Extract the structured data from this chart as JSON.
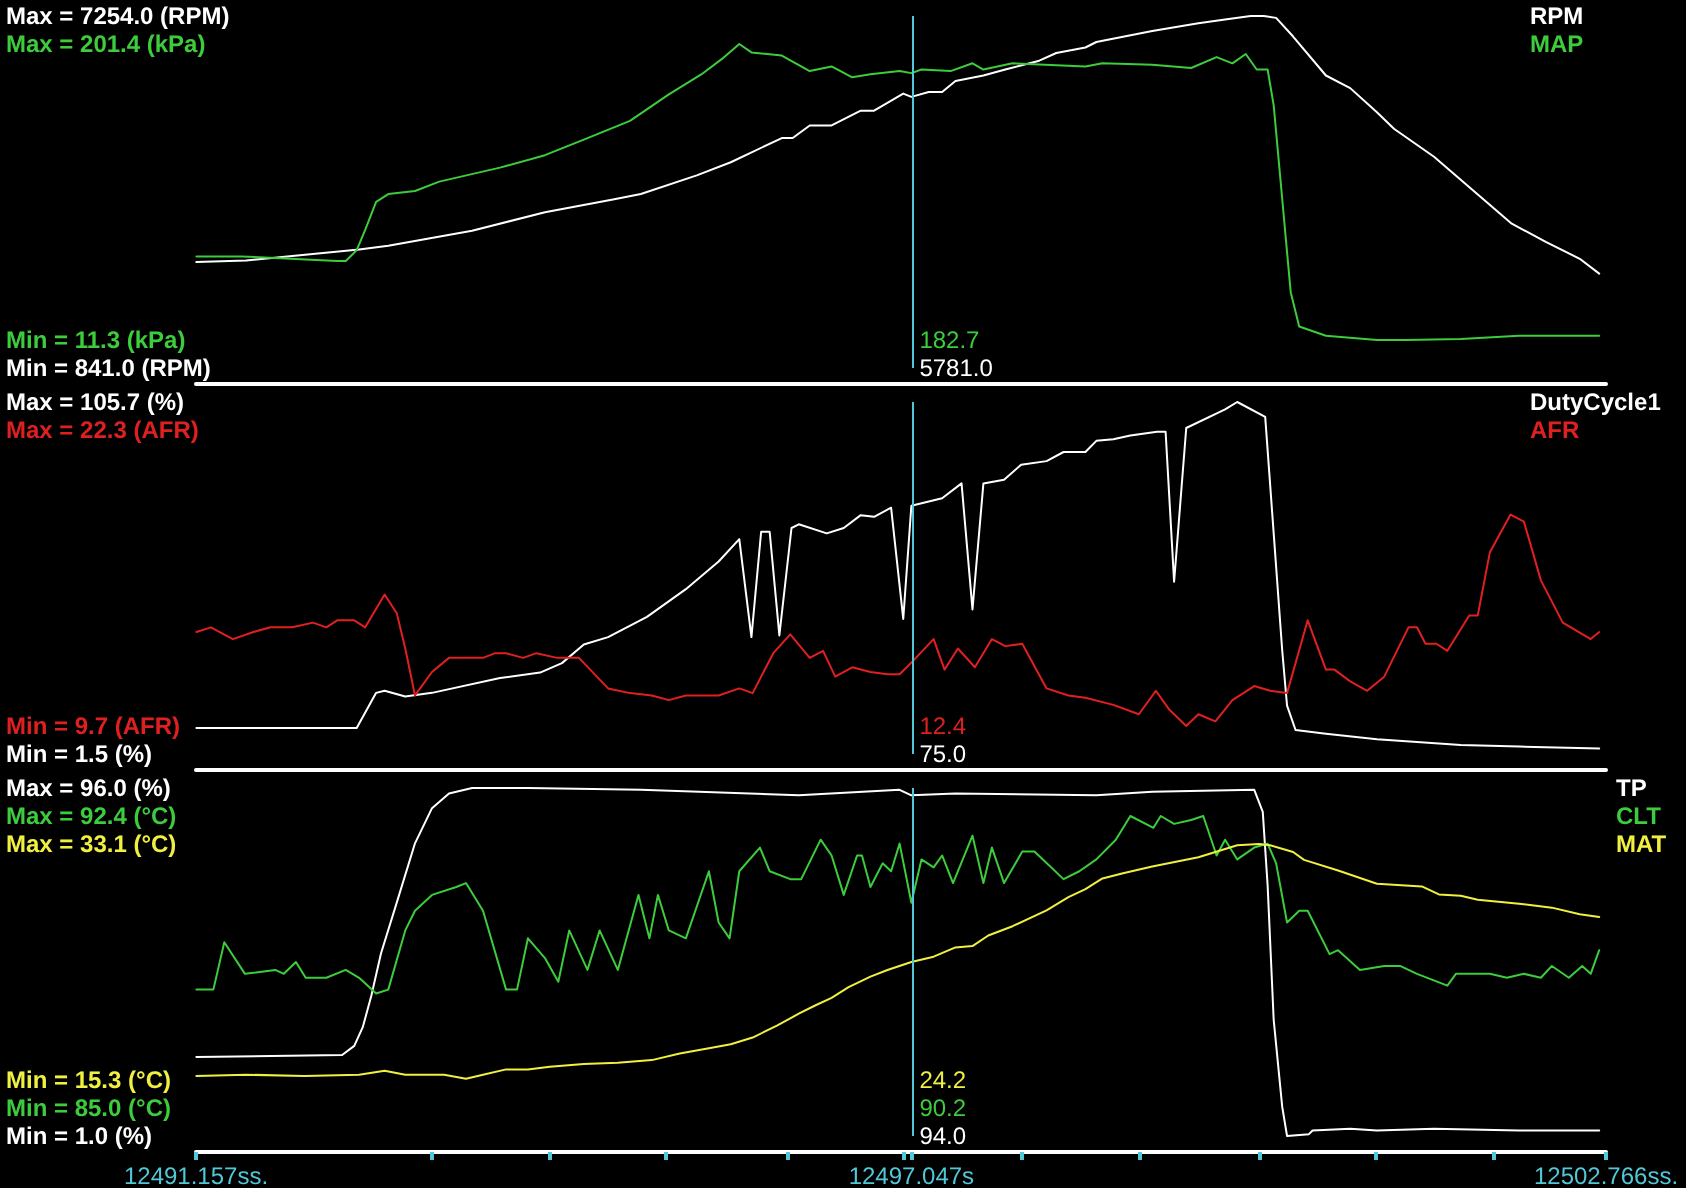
{
  "chart_data": [
    {
      "type": "line",
      "xlim": [
        12491.157,
        12502.766
      ],
      "tick_labels": "y",
      "marker": "none",
      "legend": "top right",
      "ylim": [
        841,
        7254
      ],
      "yticks": [
        {
          "value": 7254,
          "label": "Max = 7254.0 (RPM)"
        },
        {
          "value": 841,
          "label": "Min = 841.0 (RPM)"
        }
      ],
      "y2lim": [
        11.3,
        201.4
      ],
      "y2ticks": [
        {
          "value": 201.4,
          "label": "Max = 201.4 (kPa)"
        },
        {
          "value": 11.3,
          "label": "Min = 11.3 (kPa)"
        }
      ],
      "ref_lines": [
        {
          "axis": "x",
          "value": 12497.047,
          "color": "#50c8d8"
        }
      ],
      "annotations": [
        "5781.0",
        "182.7"
      ],
      "series": [
        {
          "name": "RPM",
          "color": "#ffffff",
          "x": [
            12491.16,
            12491.57,
            12492.5,
            12492.74,
            12493.43,
            12494.03,
            12494.59,
            12494.82,
            12495.28,
            12495.56,
            12495.98,
            12496.07,
            12496.21,
            12496.39,
            12496.63,
            12496.74,
            12496.98,
            12497.047,
            12497.19,
            12497.3,
            12497.41,
            12497.64,
            12497.82,
            12498.1,
            12498.24,
            12498.48,
            12498.57,
            12499.03,
            12499.41,
            12499.63,
            12499.84,
            12499.95,
            12500.05,
            12500.19,
            12500.46,
            12500.66,
            12500.88,
            12501.02,
            12501.35,
            12501.67,
            12501.99,
            12502.27,
            12502.55,
            12502.71
          ],
          "values": [
            2770,
            2800,
            3000,
            3070,
            3340,
            3680,
            3910,
            4010,
            4350,
            4590,
            5030,
            5030,
            5260,
            5260,
            5530,
            5530,
            5840,
            5781,
            5870,
            5870,
            6070,
            6170,
            6280,
            6440,
            6580,
            6680,
            6780,
            6980,
            7120,
            7190,
            7254,
            7254,
            7220,
            6880,
            6170,
            5940,
            5500,
            5200,
            4690,
            4080,
            3470,
            3140,
            2830,
            2560
          ]
        },
        {
          "name": "MAP",
          "color": "#3ccc3c",
          "axis": "y2",
          "x": [
            12491.16,
            12491.53,
            12492.32,
            12492.39,
            12492.48,
            12492.55,
            12492.64,
            12492.74,
            12492.96,
            12493.16,
            12493.66,
            12494.03,
            12494.35,
            12494.73,
            12495.05,
            12495.32,
            12495.49,
            12495.63,
            12495.73,
            12495.98,
            12496.21,
            12496.39,
            12496.56,
            12496.71,
            12496.95,
            12497.047,
            12497.13,
            12497.37,
            12497.55,
            12497.64,
            12497.88,
            12498.48,
            12498.62,
            12499.03,
            12499.35,
            12499.56,
            12499.69,
            12499.8,
            12499.89,
            12499.98,
            12500.03,
            12500.1,
            12500.17,
            12500.24,
            12500.46,
            12500.88,
            12501.12,
            12501.57,
            12502.05,
            12502.71
          ],
          "values": [
            65,
            65,
            62,
            62,
            69,
            82,
            100,
            105,
            107,
            113,
            122,
            130,
            140,
            152,
            169,
            182,
            192,
            201.4,
            196,
            194,
            184,
            187,
            180,
            182,
            184,
            182.7,
            185,
            184,
            189,
            185,
            189,
            187,
            189,
            188,
            186,
            193,
            189,
            195,
            185,
            185,
            162,
            102,
            42,
            20,
            14,
            11.3,
            11.3,
            12,
            14,
            14
          ]
        }
      ]
    },
    {
      "type": "line",
      "xlim": [
        12491.157,
        12502.766
      ],
      "tick_labels": "y",
      "marker": "none",
      "legend": "top right",
      "ylim": [
        1.5,
        105.7
      ],
      "yticks": [
        {
          "value": 105.7,
          "label": "Max = 105.7 (%)"
        },
        {
          "value": 1.5,
          "label": "Min = 1.5 (%)"
        }
      ],
      "y2lim": [
        9.7,
        22.3
      ],
      "y2ticks": [
        {
          "value": 22.3,
          "label": "Max = 22.3 (AFR)"
        },
        {
          "value": 9.7,
          "label": "Min = 9.7 (AFR)"
        }
      ],
      "ref_lines": [
        {
          "axis": "x",
          "value": 12497.047,
          "color": "#50c8d8"
        }
      ],
      "annotations": [
        "75.0",
        "12.4"
      ],
      "series": [
        {
          "name": "DutyCycle1",
          "color": "#ffffff",
          "x": [
            12491.16,
            12492.48,
            12492.64,
            12492.71,
            12492.88,
            12493.1,
            12493.66,
            12493.99,
            12494.17,
            12494.35,
            12494.55,
            12494.87,
            12495.19,
            12495.46,
            12495.63,
            12495.73,
            12495.81,
            12495.88,
            12495.96,
            12496.06,
            12496.12,
            12496.35,
            12496.49,
            12496.63,
            12496.74,
            12496.88,
            12496.98,
            12497.047,
            12497.3,
            12497.46,
            12497.55,
            12497.64,
            12497.81,
            12497.95,
            12498.16,
            12498.3,
            12498.48,
            12498.57,
            12498.71,
            12498.85,
            12499.07,
            12499.14,
            12499.21,
            12499.31,
            12499.63,
            12499.73,
            12499.96,
            12500.03,
            12500.1,
            12500.14,
            12500.21,
            12500.46,
            12500.88,
            12501.57,
            12502.05,
            12502.71
          ],
          "values": [
            9.2,
            9.2,
            19.6,
            20.2,
            18.5,
            19.6,
            24.0,
            25.6,
            28.4,
            33.9,
            36.1,
            42.1,
            50.3,
            58.5,
            65.1,
            36.1,
            67.3,
            67.3,
            36.6,
            68.4,
            69.5,
            66.8,
            68.4,
            72.2,
            71.7,
            74.4,
            41.5,
            75.0,
            77.2,
            81.6,
            44.3,
            81.6,
            82.7,
            87.1,
            88.2,
            90.9,
            90.9,
            94.2,
            94.7,
            95.8,
            96.9,
            96.9,
            52.5,
            98.0,
            103.5,
            105.7,
            101.3,
            66.8,
            32.2,
            15.8,
            8.6,
            7.5,
            5.9,
            4.2,
            3.7,
            3.1
          ]
        },
        {
          "name": "AFR",
          "color": "#e02020",
          "axis": "y2",
          "x": [
            12491.16,
            12491.28,
            12491.46,
            12491.63,
            12491.77,
            12491.95,
            12492.12,
            12492.23,
            12492.32,
            12492.46,
            12492.55,
            12492.71,
            12492.81,
            12492.88,
            12492.96,
            12493.1,
            12493.24,
            12493.52,
            12493.62,
            12493.71,
            12493.85,
            12493.96,
            12494.13,
            12494.31,
            12494.55,
            12494.73,
            12494.91,
            12495.05,
            12495.19,
            12495.46,
            12495.63,
            12495.74,
            12495.91,
            12496.05,
            12496.21,
            12496.32,
            12496.42,
            12496.56,
            12496.71,
            12496.85,
            12496.95,
            12497.047,
            12497.23,
            12497.32,
            12497.43,
            12497.57,
            12497.71,
            12497.82,
            12497.96,
            12498.16,
            12498.34,
            12498.48,
            12498.71,
            12498.92,
            12499.06,
            12499.17,
            12499.31,
            12499.41,
            12499.55,
            12499.69,
            12499.87,
            12500.0,
            12500.14,
            12500.31,
            12500.46,
            12500.53,
            12500.66,
            12500.8,
            12500.94,
            12501.14,
            12501.21,
            12501.28,
            12501.37,
            12501.46,
            12501.64,
            12501.71,
            12501.81,
            12501.98,
            12502.09,
            12502.23,
            12502.41,
            12502.64,
            12502.71
          ],
          "values": [
            13.7,
            13.9,
            13.4,
            13.7,
            13.9,
            13.9,
            14.1,
            13.9,
            14.2,
            14.2,
            13.9,
            15.3,
            14.5,
            13.0,
            11.0,
            12.0,
            12.6,
            12.6,
            12.8,
            12.8,
            12.6,
            12.8,
            12.6,
            12.6,
            11.3,
            11.1,
            11.0,
            10.8,
            11.0,
            11.0,
            11.3,
            11.1,
            12.8,
            13.6,
            12.6,
            12.9,
            11.8,
            12.2,
            12.0,
            11.9,
            11.9,
            12.4,
            13.4,
            12.1,
            13.0,
            12.2,
            13.4,
            13.1,
            13.2,
            11.3,
            11.0,
            10.9,
            10.6,
            10.2,
            11.2,
            10.4,
            9.7,
            10.2,
            9.9,
            10.8,
            11.4,
            11.2,
            11.1,
            14.2,
            12.1,
            12.1,
            11.6,
            11.2,
            11.8,
            13.9,
            13.9,
            13.2,
            13.2,
            12.9,
            14.4,
            14.4,
            17.1,
            18.7,
            18.4,
            15.9,
            14.1,
            13.4,
            13.7
          ]
        }
      ]
    },
    {
      "type": "line",
      "xlim": [
        12491.157,
        12502.766
      ],
      "marker": "none",
      "legend": "top right",
      "xticks": [
        {
          "value": 12491.157,
          "label": "12491.157ss."
        },
        {
          "value": 12493.1,
          "label": null
        },
        {
          "value": 12494.06,
          "label": null
        },
        {
          "value": 12495.03,
          "label": null
        },
        {
          "value": 12496.02,
          "label": null
        },
        {
          "value": 12496.99,
          "label": null
        },
        {
          "value": 12497.047,
          "label": "12497.047s"
        },
        {
          "value": 12497.96,
          "label": null
        },
        {
          "value": 12498.93,
          "label": null
        },
        {
          "value": 12499.91,
          "label": null
        },
        {
          "value": 12500.87,
          "label": null
        },
        {
          "value": 12501.84,
          "label": null
        },
        {
          "value": 12502.766,
          "label": "12502.766ss."
        }
      ],
      "ylim": [
        1.0,
        96.0
      ],
      "yticks": [
        {
          "value": 96.0,
          "label": "Max = 96.0 (%)"
        },
        {
          "value": 1.0,
          "label": "Min = 1.0 (%)"
        }
      ],
      "y2lim": [
        85.0,
        92.4
      ],
      "y2ticks": [
        {
          "value": 92.4,
          "label": "Max = 92.4 (°C)"
        },
        {
          "value": 85.0,
          "label": "Min = 85.0 (°C)"
        }
      ],
      "y3lim": [
        15.3,
        33.1
      ],
      "y3ticks": [
        {
          "value": 33.1,
          "label": "Max = 33.1 (°C)"
        },
        {
          "value": 15.3,
          "label": "Min = 15.3 (°C)"
        }
      ],
      "ref_lines": [
        {
          "axis": "x",
          "value": 12497.047,
          "color": "#50c8d8"
        }
      ],
      "annotations": [
        "94.0",
        "90.2",
        "24.2"
      ],
      "series": [
        {
          "name": "TP",
          "color": "#ffffff",
          "x": [
            12491.16,
            12492.36,
            12492.46,
            12492.53,
            12492.6,
            12492.68,
            12492.82,
            12492.96,
            12493.1,
            12493.24,
            12493.43,
            12493.89,
            12494.82,
            12496.12,
            12496.95,
            12497.047,
            12497.41,
            12498.57,
            12499.03,
            12499.87,
            12499.94,
            12499.98,
            12500.03,
            12500.1,
            12500.14,
            12500.32,
            12500.35,
            12500.66,
            12500.88,
            12501.35,
            12502.05,
            12502.71
          ],
          "values": [
            22.6,
            23.1,
            25.6,
            30.7,
            39.2,
            50.8,
            65.8,
            80.9,
            90.5,
            94.5,
            96.0,
            96.0,
            95.5,
            94.0,
            95.5,
            94.0,
            94.5,
            94.0,
            95.0,
            95.5,
            89.5,
            69.4,
            32.7,
            9.0,
            1.0,
            1.5,
            2.5,
            3.0,
            2.5,
            3.0,
            2.5,
            2.5
          ]
        },
        {
          "name": "CLT",
          "color": "#3ccc3c",
          "axis": "y2",
          "x": [
            12491.16,
            12491.3,
            12491.39,
            12491.56,
            12491.81,
            12491.88,
            12491.98,
            12492.06,
            12492.23,
            12492.39,
            12492.5,
            12492.64,
            12492.74,
            12492.88,
            12492.96,
            12493.1,
            12493.3,
            12493.38,
            12493.52,
            12493.71,
            12493.8,
            12493.89,
            12494.03,
            12494.14,
            12494.23,
            12494.38,
            12494.48,
            12494.63,
            12494.8,
            12494.89,
            12494.96,
            12495.05,
            12495.19,
            12495.38,
            12495.46,
            12495.55,
            12495.63,
            12495.8,
            12495.88,
            12496.05,
            12496.14,
            12496.3,
            12496.39,
            12496.49,
            12496.6,
            12496.64,
            12496.71,
            12496.81,
            12496.88,
            12496.95,
            12497.047,
            12497.13,
            12497.23,
            12497.3,
            12497.39,
            12497.55,
            12497.64,
            12497.71,
            12497.81,
            12497.96,
            12498.06,
            12498.3,
            12498.43,
            12498.57,
            12498.73,
            12498.85,
            12499.04,
            12499.1,
            12499.21,
            12499.35,
            12499.45,
            12499.56,
            12499.63,
            12499.73,
            12499.87,
            12499.98,
            12500.05,
            12500.14,
            12500.24,
            12500.31,
            12500.49,
            12500.56,
            12500.74,
            12500.94,
            12501.07,
            12501.21,
            12501.46,
            12501.53,
            12501.81,
            12501.95,
            12502.09,
            12502.23,
            12502.32,
            12502.46,
            12502.57,
            12502.64,
            12502.71
          ],
          "values": [
            88.0,
            88.0,
            89.2,
            88.4,
            88.5,
            88.4,
            88.7,
            88.3,
            88.3,
            88.5,
            88.3,
            87.9,
            88.0,
            89.5,
            90.0,
            90.4,
            90.6,
            90.7,
            90.0,
            88.0,
            88.0,
            89.3,
            88.8,
            88.2,
            89.5,
            88.5,
            89.5,
            88.5,
            90.4,
            89.3,
            90.4,
            89.5,
            89.3,
            91.0,
            89.7,
            89.3,
            91.0,
            91.6,
            91.0,
            90.8,
            90.8,
            91.8,
            91.4,
            90.4,
            91.4,
            91.4,
            90.6,
            91.2,
            91.0,
            91.7,
            90.2,
            91.3,
            91.1,
            91.4,
            90.7,
            91.9,
            90.7,
            91.6,
            90.7,
            91.5,
            91.5,
            90.8,
            91.0,
            91.3,
            91.8,
            92.4,
            92.1,
            92.4,
            92.2,
            92.3,
            92.4,
            91.4,
            91.8,
            91.3,
            91.6,
            91.7,
            91.2,
            89.7,
            90.0,
            90.0,
            88.9,
            89.0,
            88.5,
            88.6,
            88.6,
            88.4,
            88.1,
            88.4,
            88.4,
            88.3,
            88.4,
            88.3,
            88.6,
            88.3,
            88.6,
            88.4,
            89.0
          ]
        },
        {
          "name": "MAT",
          "color": "#f0f040",
          "axis": "y3",
          "x": [
            12491.16,
            12491.57,
            12492.05,
            12492.5,
            12492.71,
            12492.88,
            12493.2,
            12493.38,
            12493.52,
            12493.71,
            12493.89,
            12494.07,
            12494.35,
            12494.63,
            12494.91,
            12495.14,
            12495.38,
            12495.56,
            12495.74,
            12495.94,
            12496.12,
            12496.25,
            12496.39,
            12496.53,
            12496.71,
            12496.85,
            12497.047,
            12497.23,
            12497.41,
            12497.55,
            12497.68,
            12497.88,
            12498.16,
            12498.34,
            12498.48,
            12498.62,
            12498.79,
            12499.03,
            12499.41,
            12499.73,
            12499.91,
            12500.0,
            12500.19,
            12500.28,
            12500.56,
            12500.88,
            12501.25,
            12501.39,
            12501.57,
            12501.71,
            12502.05,
            12502.32,
            12502.55,
            12502.71
          ],
          "values": [
            15.6,
            15.7,
            15.6,
            15.7,
            16.0,
            15.7,
            15.7,
            15.4,
            15.7,
            16.1,
            16.1,
            16.3,
            16.5,
            16.6,
            16.8,
            17.3,
            17.7,
            18.0,
            18.5,
            19.4,
            20.3,
            20.9,
            21.5,
            22.3,
            23.1,
            23.6,
            24.2,
            24.6,
            25.3,
            25.4,
            26.2,
            26.9,
            28.1,
            29.1,
            29.7,
            30.5,
            30.9,
            31.4,
            32.1,
            33.0,
            33.1,
            33.0,
            32.5,
            31.9,
            31.1,
            30.1,
            29.9,
            29.3,
            29.2,
            28.9,
            28.6,
            28.3,
            27.8,
            27.6
          ]
        }
      ]
    }
  ]
}
